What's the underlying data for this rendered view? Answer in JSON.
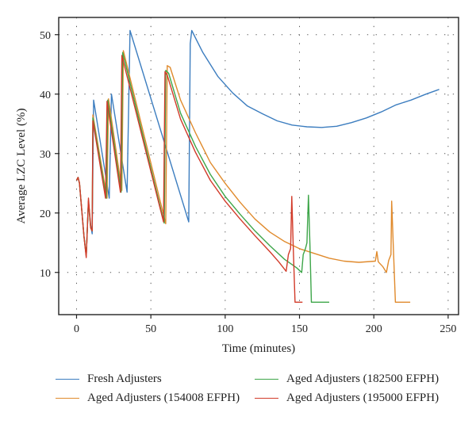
{
  "chart_data": {
    "type": "line",
    "title": "",
    "xlabel": "Time (minutes)",
    "ylabel": "Average LZC Level (%)",
    "xlim": [
      -12,
      257
    ],
    "ylim": [
      2.9,
      52.9
    ],
    "xticks": [
      0,
      50,
      100,
      150,
      200,
      250
    ],
    "yticks": [
      10,
      20,
      30,
      40,
      50
    ],
    "xtick_labels": [
      "0",
      "50",
      "100",
      "150",
      "200",
      "250"
    ],
    "ytick_labels": [
      "10",
      "20",
      "30",
      "40",
      "50"
    ],
    "grid": true,
    "legend_position": "bottom",
    "series": [
      {
        "name": "Fresh Adjusters",
        "color": "#3c7dbf",
        "points": [
          [
            0,
            25.5
          ],
          [
            1,
            26
          ],
          [
            2,
            25
          ],
          [
            5,
            16
          ],
          [
            6.5,
            12.8
          ],
          [
            8,
            22
          ],
          [
            9.5,
            18
          ],
          [
            10.5,
            16.5
          ],
          [
            11.5,
            39
          ],
          [
            22,
            22.5
          ],
          [
            23.5,
            40
          ],
          [
            34,
            23.5
          ],
          [
            36,
            50.7
          ],
          [
            75.5,
            18.5
          ],
          [
            76.5,
            48.5
          ],
          [
            77.5,
            50.7
          ],
          [
            85,
            47
          ],
          [
            95,
            43
          ],
          [
            105,
            40.2
          ],
          [
            115,
            38
          ],
          [
            125,
            36.7
          ],
          [
            135,
            35.5
          ],
          [
            145,
            34.8
          ],
          [
            155,
            34.5
          ],
          [
            165,
            34.4
          ],
          [
            175,
            34.6
          ],
          [
            185,
            35.2
          ],
          [
            195,
            36
          ],
          [
            205,
            37
          ],
          [
            215,
            38.2
          ],
          [
            225,
            39
          ],
          [
            235,
            40
          ],
          [
            244,
            40.8
          ]
        ]
      },
      {
        "name": "Aged Adjusters (154008 EFPH)",
        "color": "#e08a2c",
        "points": [
          [
            0,
            25.5
          ],
          [
            1,
            26
          ],
          [
            2,
            25
          ],
          [
            5,
            16
          ],
          [
            6.5,
            12.8
          ],
          [
            8,
            22
          ],
          [
            9.5,
            17.5
          ],
          [
            10.5,
            17
          ],
          [
            11,
            36.5
          ],
          [
            20.5,
            22.5
          ],
          [
            21.5,
            39.2
          ],
          [
            30.5,
            23.8
          ],
          [
            31.5,
            47.3
          ],
          [
            60,
            18.2
          ],
          [
            61,
            44.8
          ],
          [
            63,
            44.5
          ],
          [
            70,
            39
          ],
          [
            80,
            33.5
          ],
          [
            90,
            28.5
          ],
          [
            100,
            25
          ],
          [
            110,
            21.8
          ],
          [
            120,
            19
          ],
          [
            130,
            16.8
          ],
          [
            140,
            15.2
          ],
          [
            150,
            14
          ],
          [
            160,
            13.2
          ],
          [
            170,
            12.4
          ],
          [
            180,
            11.9
          ],
          [
            190,
            11.7
          ],
          [
            201,
            11.9
          ],
          [
            202,
            13.5
          ],
          [
            203,
            11.8
          ],
          [
            206,
            11
          ],
          [
            208.5,
            10
          ],
          [
            210,
            12
          ],
          [
            211.5,
            13
          ],
          [
            212,
            22
          ],
          [
            213,
            15
          ],
          [
            214.5,
            5
          ],
          [
            224.5,
            5
          ]
        ]
      },
      {
        "name": "Aged Adjusters (182500 EFPH)",
        "color": "#3ea64a",
        "points": [
          [
            0,
            25.5
          ],
          [
            1,
            26
          ],
          [
            2,
            25
          ],
          [
            5,
            16
          ],
          [
            6.5,
            12.8
          ],
          [
            8,
            22
          ],
          [
            9.5,
            17.5
          ],
          [
            10.5,
            17
          ],
          [
            11,
            36
          ],
          [
            20,
            22.5
          ],
          [
            21,
            39
          ],
          [
            30,
            23.5
          ],
          [
            31,
            47
          ],
          [
            59,
            18.3
          ],
          [
            60,
            44
          ],
          [
            62,
            43.5
          ],
          [
            70,
            36.8
          ],
          [
            80,
            31.2
          ],
          [
            90,
            26.5
          ],
          [
            100,
            22.8
          ],
          [
            110,
            19.8
          ],
          [
            120,
            17
          ],
          [
            130,
            14.5
          ],
          [
            140,
            12.2
          ],
          [
            148,
            10.8
          ],
          [
            151.5,
            10
          ],
          [
            152.5,
            13
          ],
          [
            154,
            14
          ],
          [
            155,
            15
          ],
          [
            156,
            23
          ],
          [
            157,
            15
          ],
          [
            158,
            5
          ],
          [
            170,
            5
          ]
        ]
      },
      {
        "name": "Aged Adjusters (195000 EFPH)",
        "color": "#d23b2a",
        "points": [
          [
            0,
            25.5
          ],
          [
            1,
            26
          ],
          [
            2,
            25
          ],
          [
            5,
            16
          ],
          [
            6.5,
            12.5
          ],
          [
            8,
            22.5
          ],
          [
            9.5,
            17.5
          ],
          [
            10.5,
            17
          ],
          [
            11,
            35.5
          ],
          [
            19.5,
            22.5
          ],
          [
            20.5,
            38.8
          ],
          [
            29.5,
            23.5
          ],
          [
            30.5,
            46.5
          ],
          [
            58.5,
            18.5
          ],
          [
            59.5,
            43.8
          ],
          [
            61,
            43.2
          ],
          [
            70,
            35.8
          ],
          [
            80,
            30.2
          ],
          [
            90,
            25.5
          ],
          [
            100,
            22
          ],
          [
            110,
            19
          ],
          [
            120,
            16.2
          ],
          [
            130,
            13.5
          ],
          [
            136,
            11.8
          ],
          [
            141,
            10.2
          ],
          [
            142.5,
            13
          ],
          [
            144,
            14
          ],
          [
            144.8,
            22.8
          ],
          [
            145.8,
            14
          ],
          [
            147,
            5
          ],
          [
            152,
            5
          ]
        ]
      }
    ]
  }
}
